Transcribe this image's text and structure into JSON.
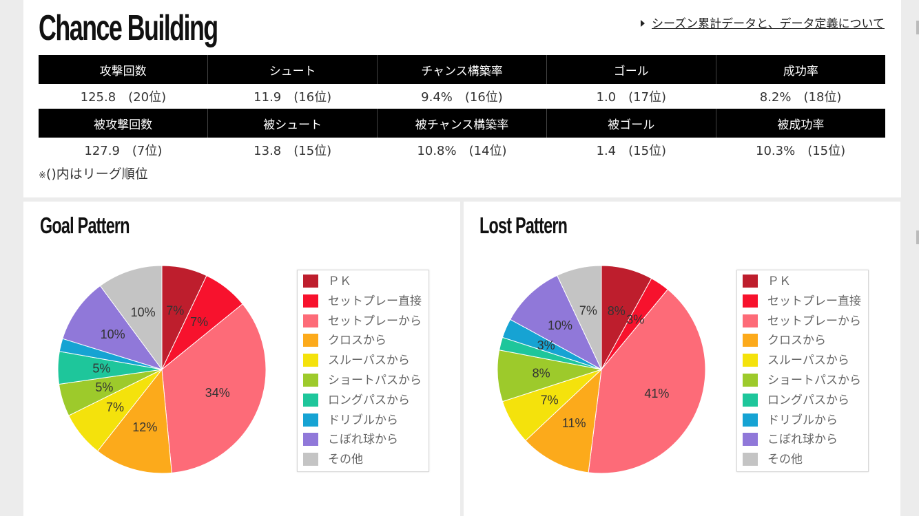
{
  "chance_building": {
    "title": "Chance Building",
    "link_text": "シーズン累計データと、データ定義について",
    "attack_headers": [
      "攻撃回数",
      "シュート",
      "チャンス構築率",
      "ゴール",
      "成功率"
    ],
    "attack_values": [
      "125.8　(20位)",
      "11.9　(16位)",
      "9.4%　(16位)",
      "1.0　(17位)",
      "8.2%　(18位)"
    ],
    "defense_headers": [
      "被攻撃回数",
      "被シュート",
      "被チャンス構築率",
      "被ゴール",
      "被成功率"
    ],
    "defense_values": [
      "127.9　(7位)",
      "13.8　(15位)",
      "10.8%　(14位)",
      "1.4　(15位)",
      "10.3%　(15位)"
    ],
    "note_mark": "※",
    "note_text": "()内はリーグ順位"
  },
  "legend_labels": [
    "ＰＫ",
    "セットプレー直接",
    "セットプレーから",
    "クロスから",
    "スルーパスから",
    "ショートパスから",
    "ロングパスから",
    "ドリブルから",
    "こぼれ球から",
    "その他"
  ],
  "colors": [
    "#be1e2d",
    "#f7122d",
    "#fd6b78",
    "#fcaa1b",
    "#f4e20c",
    "#9dca2b",
    "#1ec69b",
    "#16a3d3",
    "#9078d9",
    "#c4c4c4"
  ],
  "chart_data": [
    {
      "type": "pie",
      "title": "Goal Pattern",
      "categories": [
        "ＰＫ",
        "セットプレー直接",
        "セットプレーから",
        "クロスから",
        "スルーパスから",
        "ショートパスから",
        "ロングパスから",
        "ドリブルから",
        "こぼれ球から",
        "その他"
      ],
      "values": [
        7,
        7,
        34,
        12,
        7,
        5,
        5,
        2,
        10,
        10
      ],
      "labels": [
        "7%",
        "7%",
        "34%",
        "12%",
        "7%",
        "5%",
        "5%",
        "",
        "10%",
        "10%"
      ],
      "legend_position": "right"
    },
    {
      "type": "pie",
      "title": "Lost Pattern",
      "categories": [
        "ＰＫ",
        "セットプレー直接",
        "セットプレーから",
        "クロスから",
        "スルーパスから",
        "ショートパスから",
        "ロングパスから",
        "ドリブルから",
        "こぼれ球から",
        "その他"
      ],
      "values": [
        8,
        3,
        41,
        11,
        7,
        8,
        2,
        3,
        10,
        7
      ],
      "labels": [
        "8%",
        "3%",
        "41%",
        "11%",
        "7%",
        "8%",
        "",
        "3%",
        "10%",
        "7%"
      ],
      "legend_position": "right"
    }
  ]
}
